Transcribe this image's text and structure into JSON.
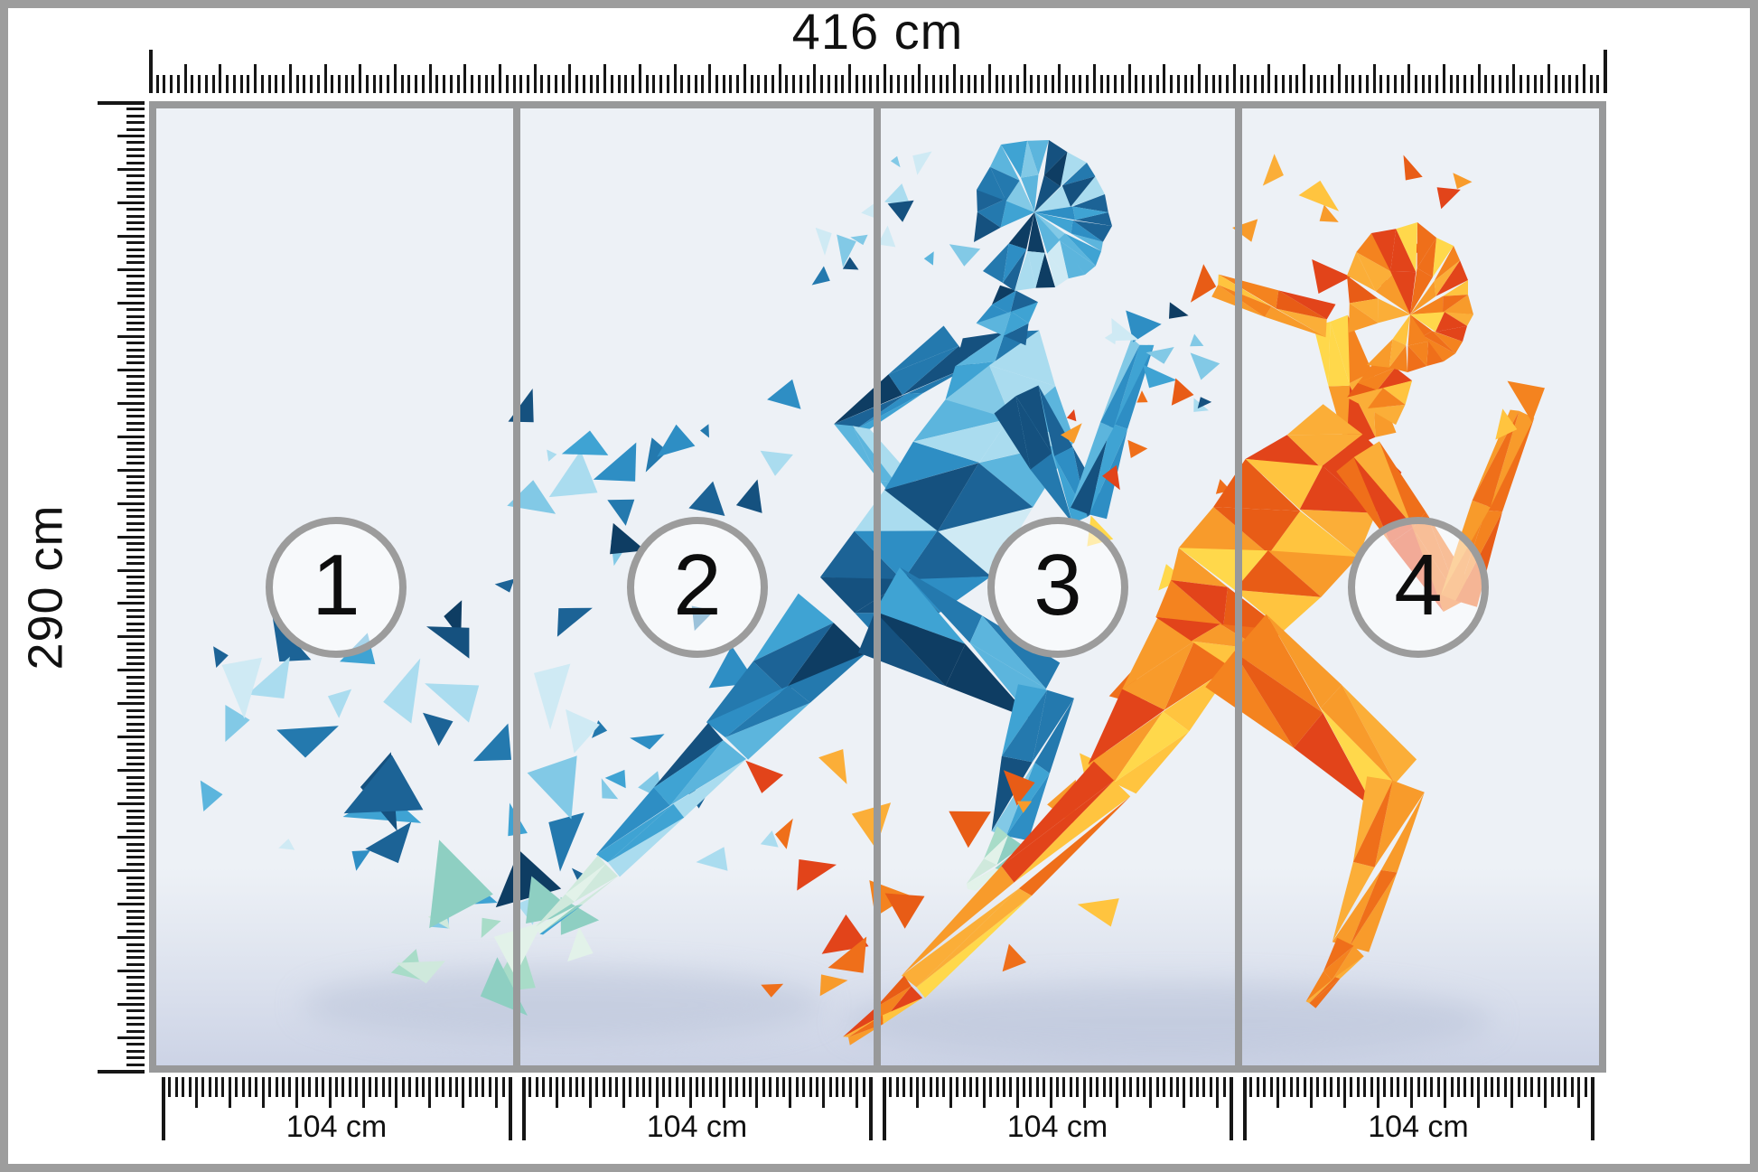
{
  "rulers": {
    "top": {
      "label": "416 cm",
      "cm": 416
    },
    "left": {
      "label": "290 cm",
      "cm": 290
    },
    "bottom": {
      "cm": 104,
      "segments": [
        "104 cm",
        "104 cm",
        "104 cm",
        "104 cm"
      ]
    }
  },
  "panels": [
    {
      "number": "1"
    },
    {
      "number": "2"
    },
    {
      "number": "3"
    },
    {
      "number": "4"
    }
  ],
  "colors": {
    "page_background": "#ffffff",
    "stage_background": "#edf1f6",
    "outer_frame": "#9d9d9d",
    "panel_border": "#98999a",
    "divider": "#98999a",
    "circle_ring": "#9c9c9c",
    "circle_fill": "rgba(255,255,255,0.55)",
    "tick": "#161616",
    "label_text": "#111111",
    "floor_shadow": "#b6c0d6",
    "blue_palette": [
      "#0e3d63",
      "#15517f",
      "#1c6396",
      "#2479ae",
      "#2e8ec4",
      "#3fa3d3",
      "#5cb5dd",
      "#82c9e6",
      "#aadcef",
      "#cfeaf4"
    ],
    "blue_accent_mint": [
      "#8ecfc2",
      "#a8dcc8",
      "#cfe9dc",
      "#e2f2e9"
    ],
    "orange_palette": [
      "#e2441a",
      "#e85c16",
      "#ef6f1a",
      "#f4831f",
      "#f89b2b",
      "#fbae38",
      "#ffc43f",
      "#ffd84b"
    ]
  },
  "artwork": {
    "left_figure": "blue-polygonal-runner",
    "right_figure": "orange-polygonal-runner"
  }
}
